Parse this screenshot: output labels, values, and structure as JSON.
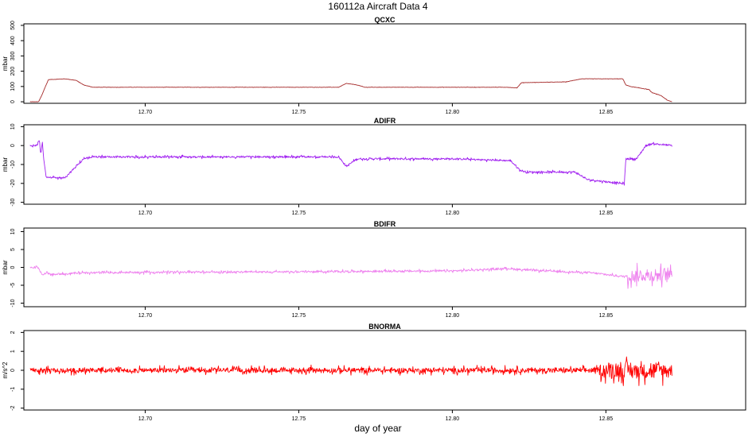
{
  "figure": {
    "title": "160112a   Aircraft Data 4",
    "xlabel": "day of year"
  },
  "chart_data": [
    {
      "type": "line",
      "title": "QCXC",
      "ylabel": "mbar",
      "xlim": [
        12.6605,
        12.8955
      ],
      "ylim": [
        -10,
        510
      ],
      "xticks": [
        12.7,
        12.75,
        12.8,
        12.85
      ],
      "xtick_labels": [
        "12.70",
        "12.75",
        "12.80",
        "12.85"
      ],
      "yticks": [
        0,
        100,
        200,
        300,
        400,
        500
      ],
      "ytick_labels": [
        "0",
        "100",
        "200",
        "300",
        "400",
        "500"
      ],
      "color": "#a52a2a",
      "noise": 1.2,
      "x": [
        12.6625,
        12.6653,
        12.6664,
        12.6672,
        12.6685,
        12.674,
        12.6775,
        12.68,
        12.683,
        12.7,
        12.75,
        12.763,
        12.7655,
        12.769,
        12.7715,
        12.8,
        12.818,
        12.821,
        12.8225,
        12.837,
        12.842,
        12.845,
        12.8555,
        12.8565,
        12.858,
        12.864,
        12.865,
        12.868,
        12.87,
        12.8715
      ],
      "y": [
        0,
        0,
        45,
        85,
        145,
        150,
        140,
        110,
        95,
        95,
        95,
        95,
        120,
        110,
        95,
        95,
        95,
        90,
        125,
        130,
        150,
        150,
        150,
        110,
        100,
        80,
        60,
        40,
        10,
        0
      ]
    },
    {
      "type": "line",
      "title": "ADIFR",
      "ylabel": "mbar",
      "xlim": [
        12.6605,
        12.8955
      ],
      "ylim": [
        -31,
        11
      ],
      "xticks": [
        12.7,
        12.75,
        12.8,
        12.85
      ],
      "xtick_labels": [
        "12.70",
        "12.75",
        "12.80",
        "12.85"
      ],
      "yticks": [
        -30,
        -20,
        -10,
        0,
        10
      ],
      "ytick_labels": [
        "-30",
        "-20",
        "-10",
        "0",
        "10"
      ],
      "color": "#a020f0",
      "noise": 0.6,
      "x": [
        12.6625,
        12.6648,
        12.6655,
        12.666,
        12.6665,
        12.667,
        12.6678,
        12.674,
        12.675,
        12.68,
        12.683,
        12.75,
        12.763,
        12.7655,
        12.769,
        12.8,
        12.819,
        12.822,
        12.824,
        12.84,
        12.844,
        12.855,
        12.856,
        12.8565,
        12.86,
        12.863,
        12.865,
        12.8715
      ],
      "y": [
        0,
        0,
        3,
        -5,
        2,
        -8,
        -17,
        -17,
        -15,
        -7,
        -6,
        -6,
        -6,
        -11,
        -7,
        -7,
        -8,
        -13,
        -14,
        -14,
        -18,
        -20,
        -20,
        -7,
        -7,
        0,
        1,
        0
      ]
    },
    {
      "type": "line",
      "title": "BDIFR",
      "ylabel": "mbar",
      "xlim": [
        12.6605,
        12.8955
      ],
      "ylim": [
        -11,
        11
      ],
      "xticks": [
        12.7,
        12.75,
        12.8,
        12.85
      ],
      "xtick_labels": [
        "12.70",
        "12.75",
        "12.80",
        "12.85"
      ],
      "yticks": [
        -10,
        -5,
        0,
        5,
        10
      ],
      "ytick_labels": [
        "-10",
        "-5",
        "0",
        "5",
        "10"
      ],
      "color": "#ee82ee",
      "noise": 0.35,
      "burst_start": 12.857,
      "burst_noise": 2.2,
      "x": [
        12.6625,
        12.665,
        12.6665,
        12.668,
        12.67,
        12.68,
        12.75,
        12.8,
        12.818,
        12.825,
        12.845,
        12.855,
        12.8715
      ],
      "y": [
        0,
        0,
        -2,
        -1.5,
        -2,
        -1.5,
        -1.2,
        -1,
        -0.3,
        -0.8,
        -1.5,
        -2.5,
        -2
      ]
    },
    {
      "type": "line",
      "title": "BNORMA",
      "ylabel": "m/s^2",
      "xlim": [
        12.6605,
        12.8955
      ],
      "ylim": [
        -2.1,
        2.1
      ],
      "xticks": [
        12.7,
        12.75,
        12.8,
        12.85
      ],
      "xtick_labels": [
        "12.70",
        "12.75",
        "12.80",
        "12.85"
      ],
      "yticks": [
        -2,
        -1,
        0,
        1,
        2
      ],
      "ytick_labels": [
        "-2",
        "-1",
        "0",
        "1",
        "2"
      ],
      "color": "#ff0000",
      "noise": 0.16,
      "burst_start": 12.848,
      "burst_noise": 0.5,
      "x": [
        12.6625,
        12.8715
      ],
      "y": [
        0,
        0
      ]
    }
  ]
}
